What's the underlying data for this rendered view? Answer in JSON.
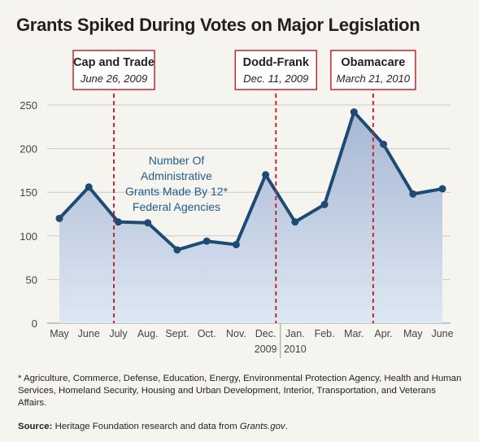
{
  "title": "Grants Spiked During Votes on Major Legislation",
  "chart_data": {
    "type": "area",
    "title": "Grants Spiked During Votes on Major Legislation",
    "categories": [
      "May",
      "June",
      "July",
      "Aug.",
      "Sept.",
      "Oct.",
      "Nov.",
      "Dec.",
      "Jan.",
      "Feb.",
      "Mar.",
      "Apr.",
      "May",
      "June"
    ],
    "year_labels": [
      {
        "under": "Dec.",
        "label": "2009"
      },
      {
        "under": "Jan.",
        "label": "2010"
      }
    ],
    "series": [
      {
        "name": "Number Of Administrative Grants Made By 12* Federal Agencies",
        "values": [
          120,
          156,
          116,
          115,
          84,
          94,
          90,
          170,
          116,
          136,
          242,
          205,
          148,
          154
        ]
      }
    ],
    "ylim": [
      0,
      250
    ],
    "yticks": [
      0,
      50,
      100,
      150,
      200,
      250
    ],
    "grid": true,
    "series_label_lines": [
      "Number Of",
      "Administrative",
      "Grants Made By 12*",
      "Federal Agencies"
    ],
    "events": [
      {
        "name": "Cap and Trade",
        "date": "June 26, 2009",
        "x_index": 1.85
      },
      {
        "name": "Dodd-Frank",
        "date": "Dec. 11, 2009",
        "x_index": 7.35
      },
      {
        "name": "Obamacare",
        "date": "March 21, 2010",
        "x_index": 10.65
      }
    ],
    "colors": {
      "line": "#1e4a76",
      "fill_top": "#a7b6d3",
      "fill_bottom": "#dde8f2",
      "event_line": "#c1272d",
      "grid": "#c9c9c9",
      "label_text": "#1f5d8c"
    }
  },
  "footnote": "* Agriculture, Commerce, Defense, Education, Energy, Environmental Protection Agency, Health and Human Services, Homeland Security, Housing and Urban Development, Interior, Transportation, and Veterans Affairs.",
  "source": {
    "label": "Source:",
    "text": " Heritage Foundation research and data from ",
    "link": "Grants.gov",
    "end": "."
  }
}
